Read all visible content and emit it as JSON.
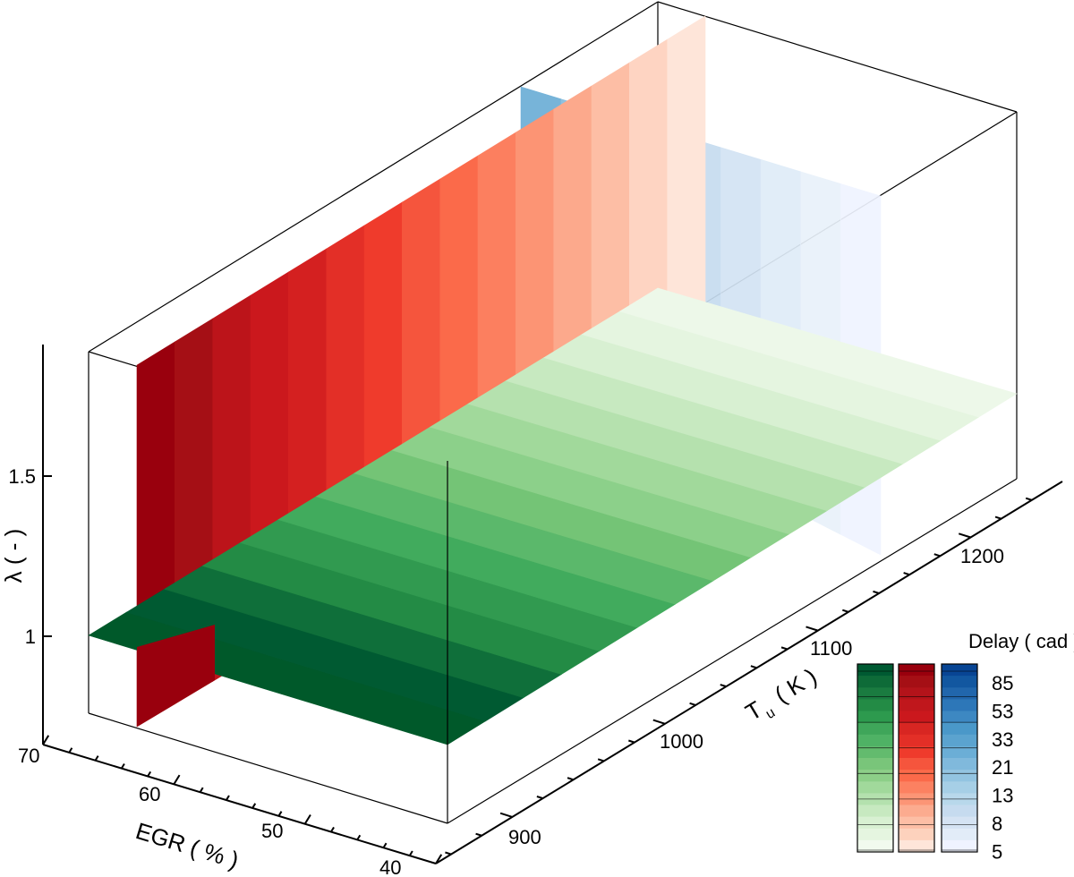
{
  "chart_data": {
    "type": "3d-contour-slices",
    "axes": {
      "egr": {
        "label": "EGR ( % )",
        "ticks": [
          "70",
          "60",
          "50",
          "40"
        ],
        "range": [
          40,
          70
        ]
      },
      "tu": {
        "label_main": "T",
        "label_sub": "u",
        "label_unit": "( K )",
        "ticks": [
          "900",
          "1000",
          "1100",
          "1200"
        ],
        "range": [
          850,
          1260
        ]
      },
      "lambda": {
        "label": "λ ( - )",
        "ticks": [
          "1",
          "1.5"
        ],
        "range": [
          0.8,
          1.85
        ]
      }
    },
    "slices": [
      {
        "name": "",
        "colormap": "reds",
        "plane": "constant EGR",
        "egr": 60,
        "colors": [
          "#99000d",
          "#a50f15",
          "#bc141a",
          "#cb181d",
          "#d42020",
          "#e32f27",
          "#ef3b2c",
          "#f5553d",
          "#fb6a4a",
          "#fc7f5f",
          "#fc9474",
          "#fca98c",
          "#fdbea5",
          "#fed4c2",
          "#fee5d9"
        ]
      },
      {
        "name": "",
        "colormap": "blues",
        "plane": "constant EGR",
        "egr": 47,
        "colors": [
          "#6baed6",
          "#85bcdc",
          "#9ecae1",
          "#b0d2e7",
          "#c6dbef",
          "#d2e3f3",
          "#deebf7",
          "#e8f1fa",
          "#eff3ff"
        ]
      },
      {
        "name": "",
        "colormap": "greens",
        "plane": "constant λ",
        "lambda": 1,
        "colors": [
          "#00592a",
          "#005a32",
          "#0f6f3a",
          "#238b45",
          "#319a50",
          "#41ab5d",
          "#5bb86b",
          "#74c476",
          "#8cd08a",
          "#a1d99b",
          "#b5e1ae",
          "#c7e9c0",
          "#d8f0d2",
          "#e5f5e0",
          "#edf8e9"
        ]
      }
    ],
    "legend": {
      "title": "Delay ( cad )",
      "levels": [
        "85",
        "53",
        "33",
        "21",
        "13",
        "8",
        "5"
      ],
      "colormaps": [
        "greens",
        "reds",
        "blues"
      ],
      "greens": [
        "#005a32",
        "#0e6b38",
        "#1a7b40",
        "#238b45",
        "#2d9a4e",
        "#3fa65a",
        "#4fb265",
        "#63bb6e",
        "#79c57a",
        "#8dcf88",
        "#a1d99b",
        "#b4e1ae",
        "#c7e9c0",
        "#d8f0d2",
        "#e5f5e0",
        "#f1faee"
      ],
      "reds": [
        "#99000d",
        "#a50f15",
        "#b3131a",
        "#c0171c",
        "#cb181d",
        "#d82622",
        "#e32f27",
        "#ef3b2c",
        "#f5553d",
        "#fb6a4a",
        "#fc8161",
        "#fc9576",
        "#fcab8f",
        "#fdbea5",
        "#fdd2bd",
        "#fee5d9"
      ],
      "blues": [
        "#084594",
        "#1257a0",
        "#2166ac",
        "#2d77b8",
        "#3d88c2",
        "#4a98c9",
        "#5ba3cf",
        "#6baed6",
        "#80b9dc",
        "#93c4e1",
        "#a6cfe6",
        "#b8d8eb",
        "#c6dbef",
        "#d5e3f3",
        "#e2ecf8",
        "#eff3ff"
      ]
    }
  }
}
